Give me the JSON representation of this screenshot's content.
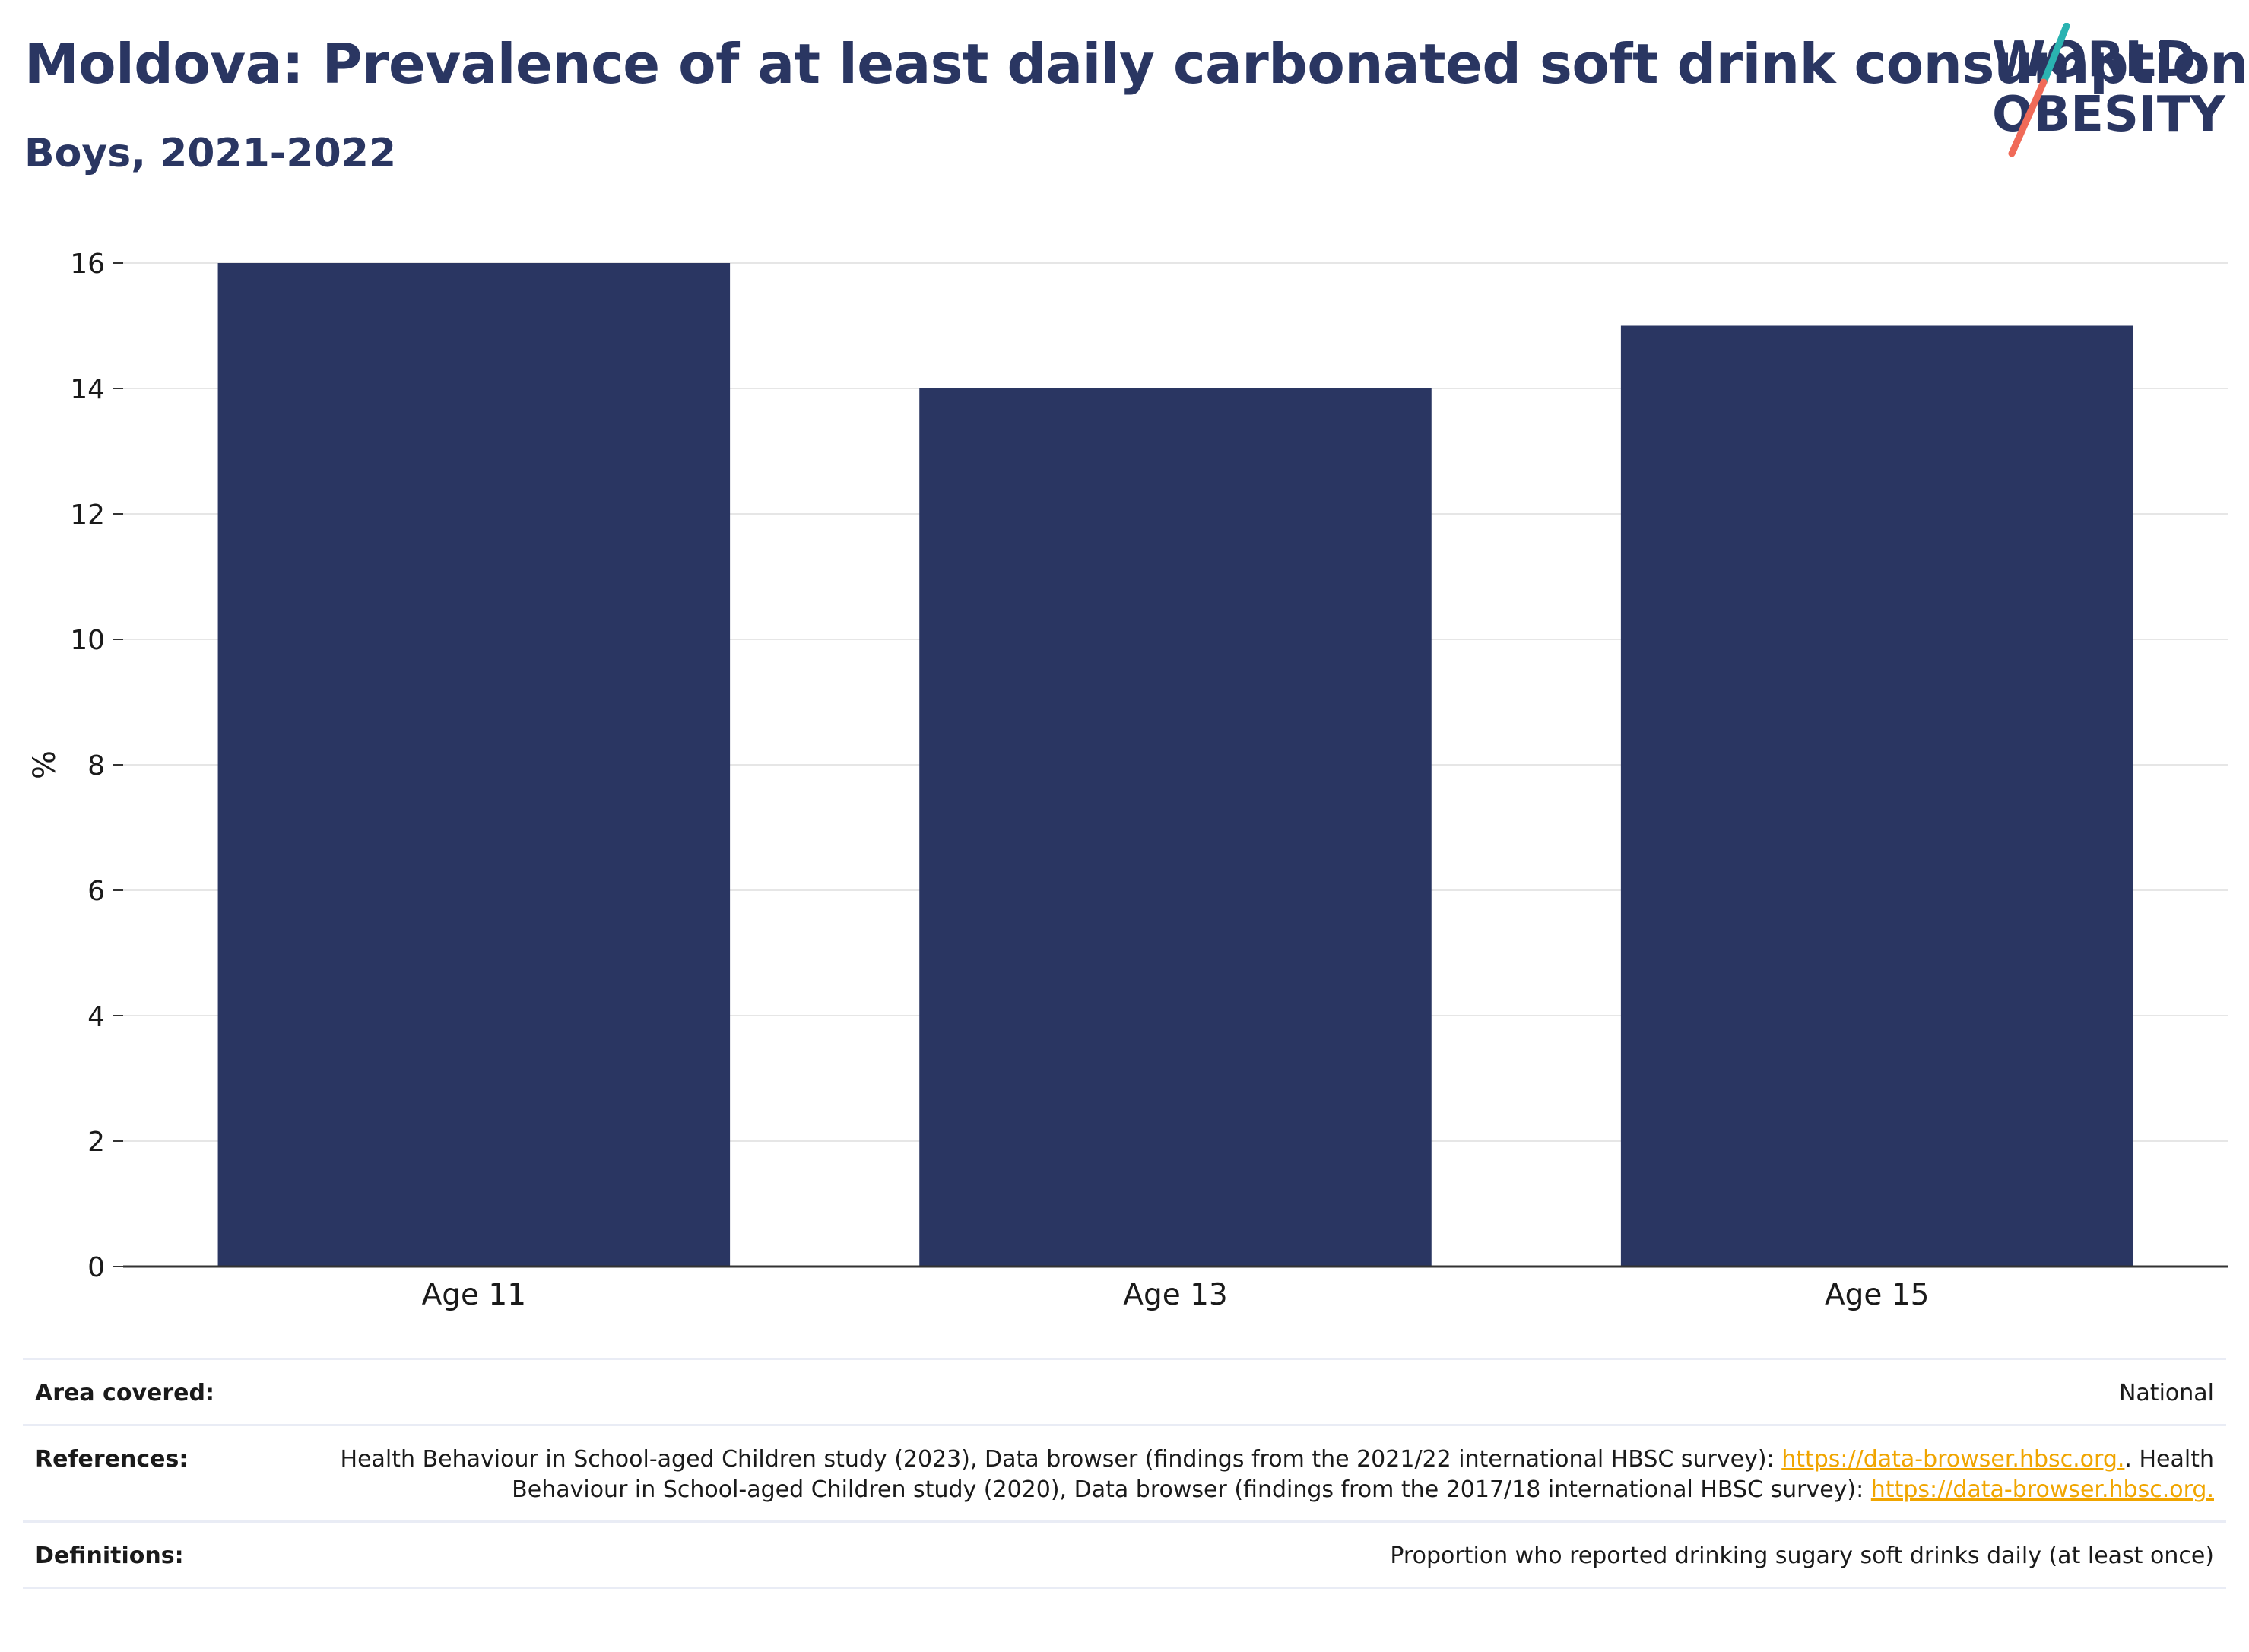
{
  "header": {
    "title": "Moldova: Prevalence of at least daily carbonated soft drink consumption",
    "subtitle": "Boys, 2021-2022"
  },
  "logo": {
    "line1": "WORLD",
    "line2": "OBESITY",
    "colors": {
      "text": "#2a3662",
      "slash_top": "#2ab3b1",
      "slash_bottom": "#f06a58"
    }
  },
  "chart_data": {
    "type": "bar",
    "categories": [
      "Age 11",
      "Age 13",
      "Age 15"
    ],
    "values": [
      16,
      14,
      15
    ],
    "title": "",
    "xlabel": "",
    "ylabel": "%",
    "ylim": [
      0,
      16
    ],
    "yticks": [
      "0",
      "2",
      "4",
      "6",
      "8",
      "10",
      "12",
      "14",
      "16"
    ],
    "bar_color": "#2a3662",
    "grid": true,
    "legend": "none"
  },
  "footer": {
    "area_label": "Area covered:",
    "area_value": "National",
    "references_label": "References:",
    "references_part1": "Health Behaviour in School-aged Children study (2023), Data browser (findings from the 2021/22 international HBSC survey):",
    "references_link1": "https://data-browser.hbsc.org.",
    "references_part2": ". Health Behaviour in School-aged Children study (2020), Data browser (findings from the 2017/18 international HBSC survey):",
    "references_link2": "https://data-browser.hbsc.org.",
    "definitions_label": "Definitions:",
    "definitions_value": "Proportion who reported drinking sugary soft drinks daily (at least once)"
  }
}
